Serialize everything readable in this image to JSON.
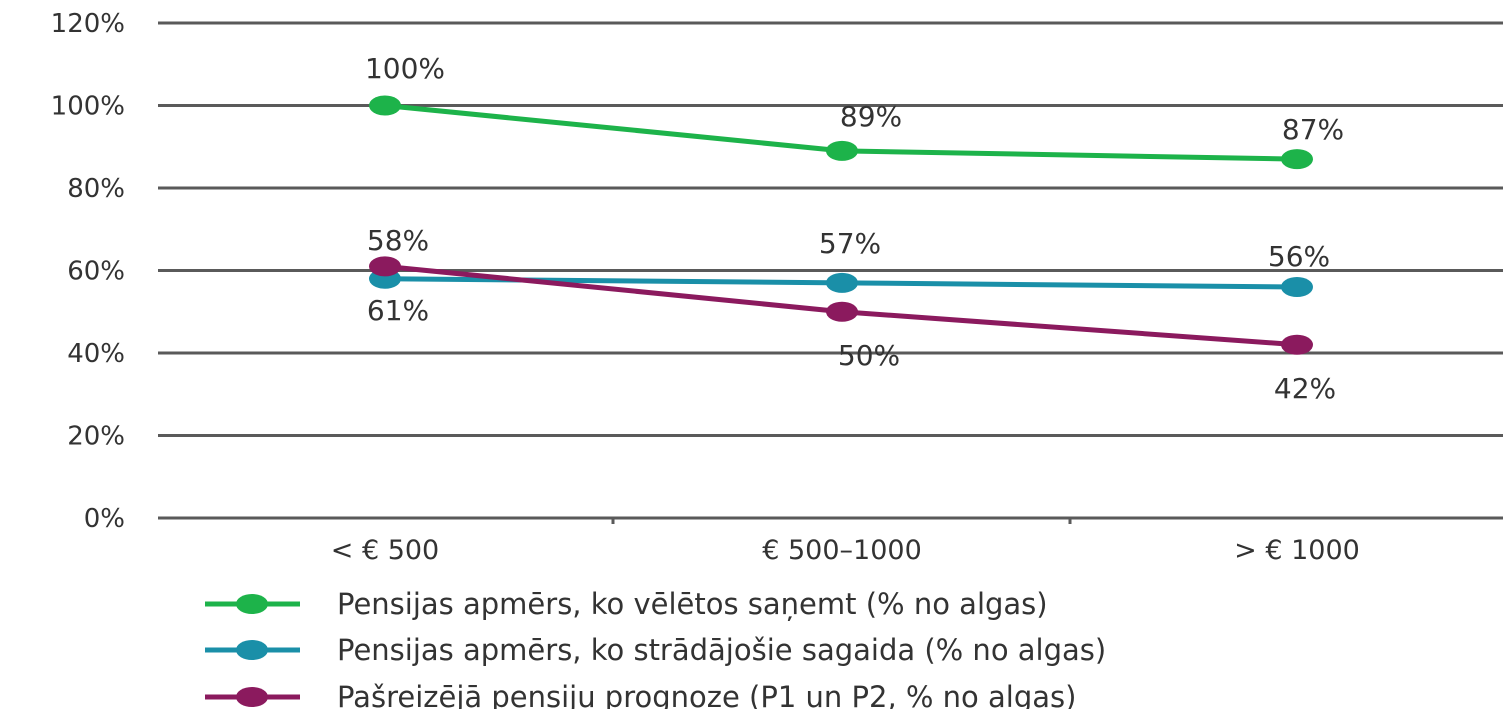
{
  "chart_data": {
    "type": "line",
    "categories": [
      "< € 500",
      "€ 500–1000",
      "> € 1000"
    ],
    "ylim": [
      0,
      120
    ],
    "yticks": [
      "0%",
      "20%",
      "40%",
      "60%",
      "80%",
      "100%",
      "120%"
    ],
    "grid": true,
    "legend_position": "bottom",
    "series": [
      {
        "name": "Pensijas apmērs, ko vēlētos saņemt (% no algas)",
        "color": "#1db34a",
        "values": [
          100,
          89,
          87
        ],
        "labels": [
          "100%",
          "89%",
          "87%"
        ]
      },
      {
        "name": "Pensijas apmērs, ko strādājošie sagaida (% no algas)",
        "color": "#1a8fa8",
        "values": [
          58,
          57,
          56
        ],
        "labels": [
          "58%",
          "57%",
          "56%"
        ]
      },
      {
        "name": "Pašreizējā pensiju prognoze (P1 un P2, % no algas)",
        "color": "#8b1a5e",
        "values": [
          61,
          50,
          42
        ],
        "labels": [
          "61%",
          "50%",
          "42%"
        ]
      }
    ]
  }
}
